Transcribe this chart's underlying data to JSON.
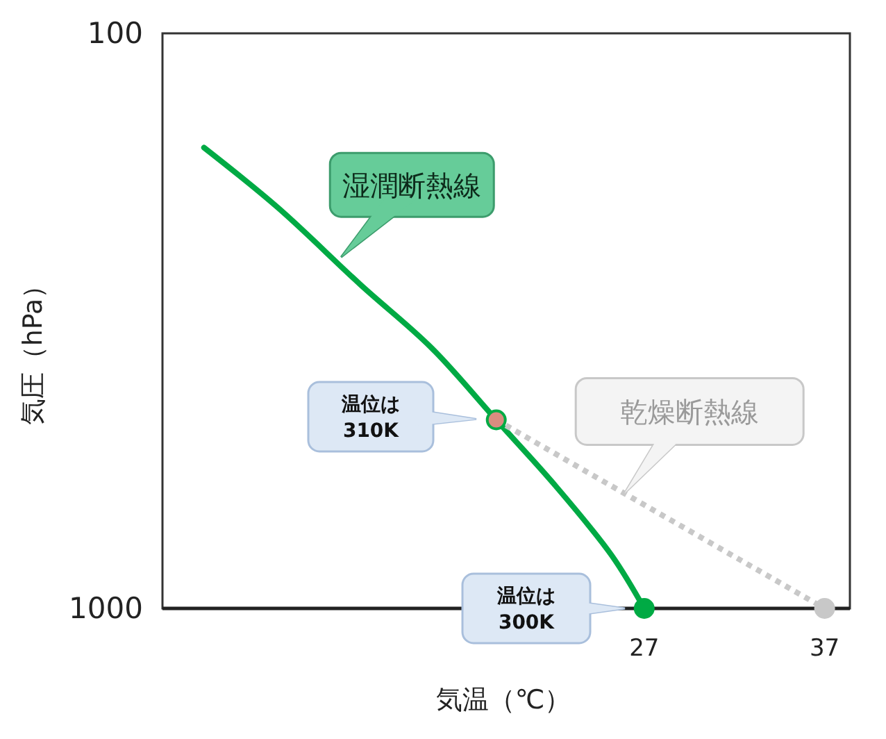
{
  "chart_data": {
    "type": "line",
    "xlabel": "気温（℃）",
    "ylabel": "気圧（hPa）",
    "log": "y",
    "xlim": [
      0.3,
      38.4
    ],
    "ylim": [
      1000,
      100
    ],
    "xticks": [
      27,
      37
    ],
    "yticks": [
      100,
      1000
    ],
    "grid": false,
    "series": [
      {
        "color": "#00aa44",
        "line_style": "solid",
        "x": [
          2.6,
          6.7,
          11.3,
          15.2,
          18.8,
          22.1,
          25.2,
          27
        ],
        "values": [
          158,
          201,
          274,
          352,
          470,
          613,
          809,
          1000
        ]
      },
      {
        "color": "#c8c8c8",
        "line_style": "dotted",
        "x": [
          18.8,
          37
        ],
        "values": [
          470,
          1000
        ]
      },
      {
        "type": "scatter",
        "marker": "circle",
        "x": [
          18.8,
          27,
          37
        ],
        "values": [
          470,
          1000,
          1000
        ],
        "colors": [
          "#d98c80",
          "#00aa44",
          "#c8c8c8"
        ]
      }
    ],
    "annotations": [
      {
        "text": "湿潤断熱線",
        "x": 10.2,
        "y": 245
      },
      {
        "text": "乾燥断熱線",
        "x": 25.9,
        "y": 631
      },
      "温位は\n310K",
      "温位は\n300K"
    ]
  }
}
